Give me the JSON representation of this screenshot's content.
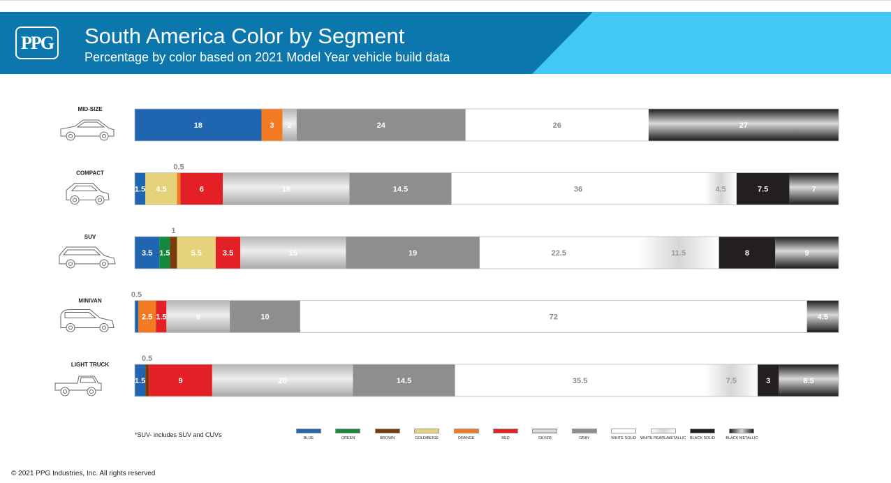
{
  "header": {
    "logo_text": "PPG",
    "title": "South America Color by Segment",
    "subtitle": "Percentage by color based on 2021 Model Year vehicle build data"
  },
  "colors": {
    "blue": "#1f65b0",
    "green": "#138a3b",
    "brown": "#7a3b0c",
    "gold_beige": "#e6d27a",
    "orange": "#f27a22",
    "red": "#e32026",
    "silver": "#c6c6c6",
    "gray": "#8e8e8e",
    "white_solid": "#ffffff",
    "white_pearl_metallic": "#e9e9e9",
    "black_solid": "#231f20",
    "black_metallic": "#3a3a3a",
    "header_dark": "#0b77ad",
    "header_light": "#41c8f5"
  },
  "chart_data": {
    "type": "bar",
    "orientation": "horizontal",
    "stacked": true,
    "title": "South America Color by Segment",
    "subtitle": "Percentage by color based on 2021 Model Year vehicle build data",
    "categories": [
      "MID-SIZE",
      "COMPACT",
      "SUV",
      "MINIVAN",
      "LIGHT TRUCK"
    ],
    "series": [
      {
        "name": "BLUE",
        "color_key": "blue",
        "values": [
          18,
          1.5,
          3.5,
          0.5,
          1.5
        ]
      },
      {
        "name": "GREEN",
        "color_key": "green",
        "values": [
          0,
          0,
          1.5,
          0,
          0
        ]
      },
      {
        "name": "BROWN",
        "color_key": "brown",
        "values": [
          0,
          0,
          1,
          0,
          0.5
        ]
      },
      {
        "name": "GOLD/BEIGE",
        "color_key": "gold_beige",
        "values": [
          0,
          4.5,
          5.5,
          0,
          0
        ]
      },
      {
        "name": "ORANGE",
        "color_key": "orange",
        "values": [
          3,
          0.5,
          0,
          2.5,
          0
        ]
      },
      {
        "name": "RED",
        "color_key": "red",
        "values": [
          0,
          6,
          3.5,
          1.5,
          9
        ]
      },
      {
        "name": "SILVER",
        "color_key": "silver",
        "values": [
          2,
          18,
          15,
          9,
          20
        ]
      },
      {
        "name": "GRAY",
        "color_key": "gray",
        "values": [
          24,
          14.5,
          19,
          10,
          14.5
        ]
      },
      {
        "name": "WHITE SOLID",
        "color_key": "white_solid",
        "values": [
          26,
          36,
          22.5,
          72,
          35.5
        ]
      },
      {
        "name": "WHITE PEARL/METALLIC",
        "color_key": "white_pearl_metallic",
        "values": [
          0,
          4.5,
          11.5,
          0,
          7.5
        ]
      },
      {
        "name": "BLACK SOLID",
        "color_key": "black_solid",
        "values": [
          0,
          7.5,
          8,
          0,
          3
        ]
      },
      {
        "name": "BLACK METALLIC",
        "color_key": "black_metallic",
        "values": [
          27,
          7,
          9,
          4.5,
          8.5
        ]
      }
    ],
    "xlim": [
      0,
      100
    ],
    "legend_position": "bottom"
  },
  "footnote": "*SUV- includes SUV and CUVs",
  "copyright": "© 2021 PPG Industries, Inc. All rights reserved"
}
